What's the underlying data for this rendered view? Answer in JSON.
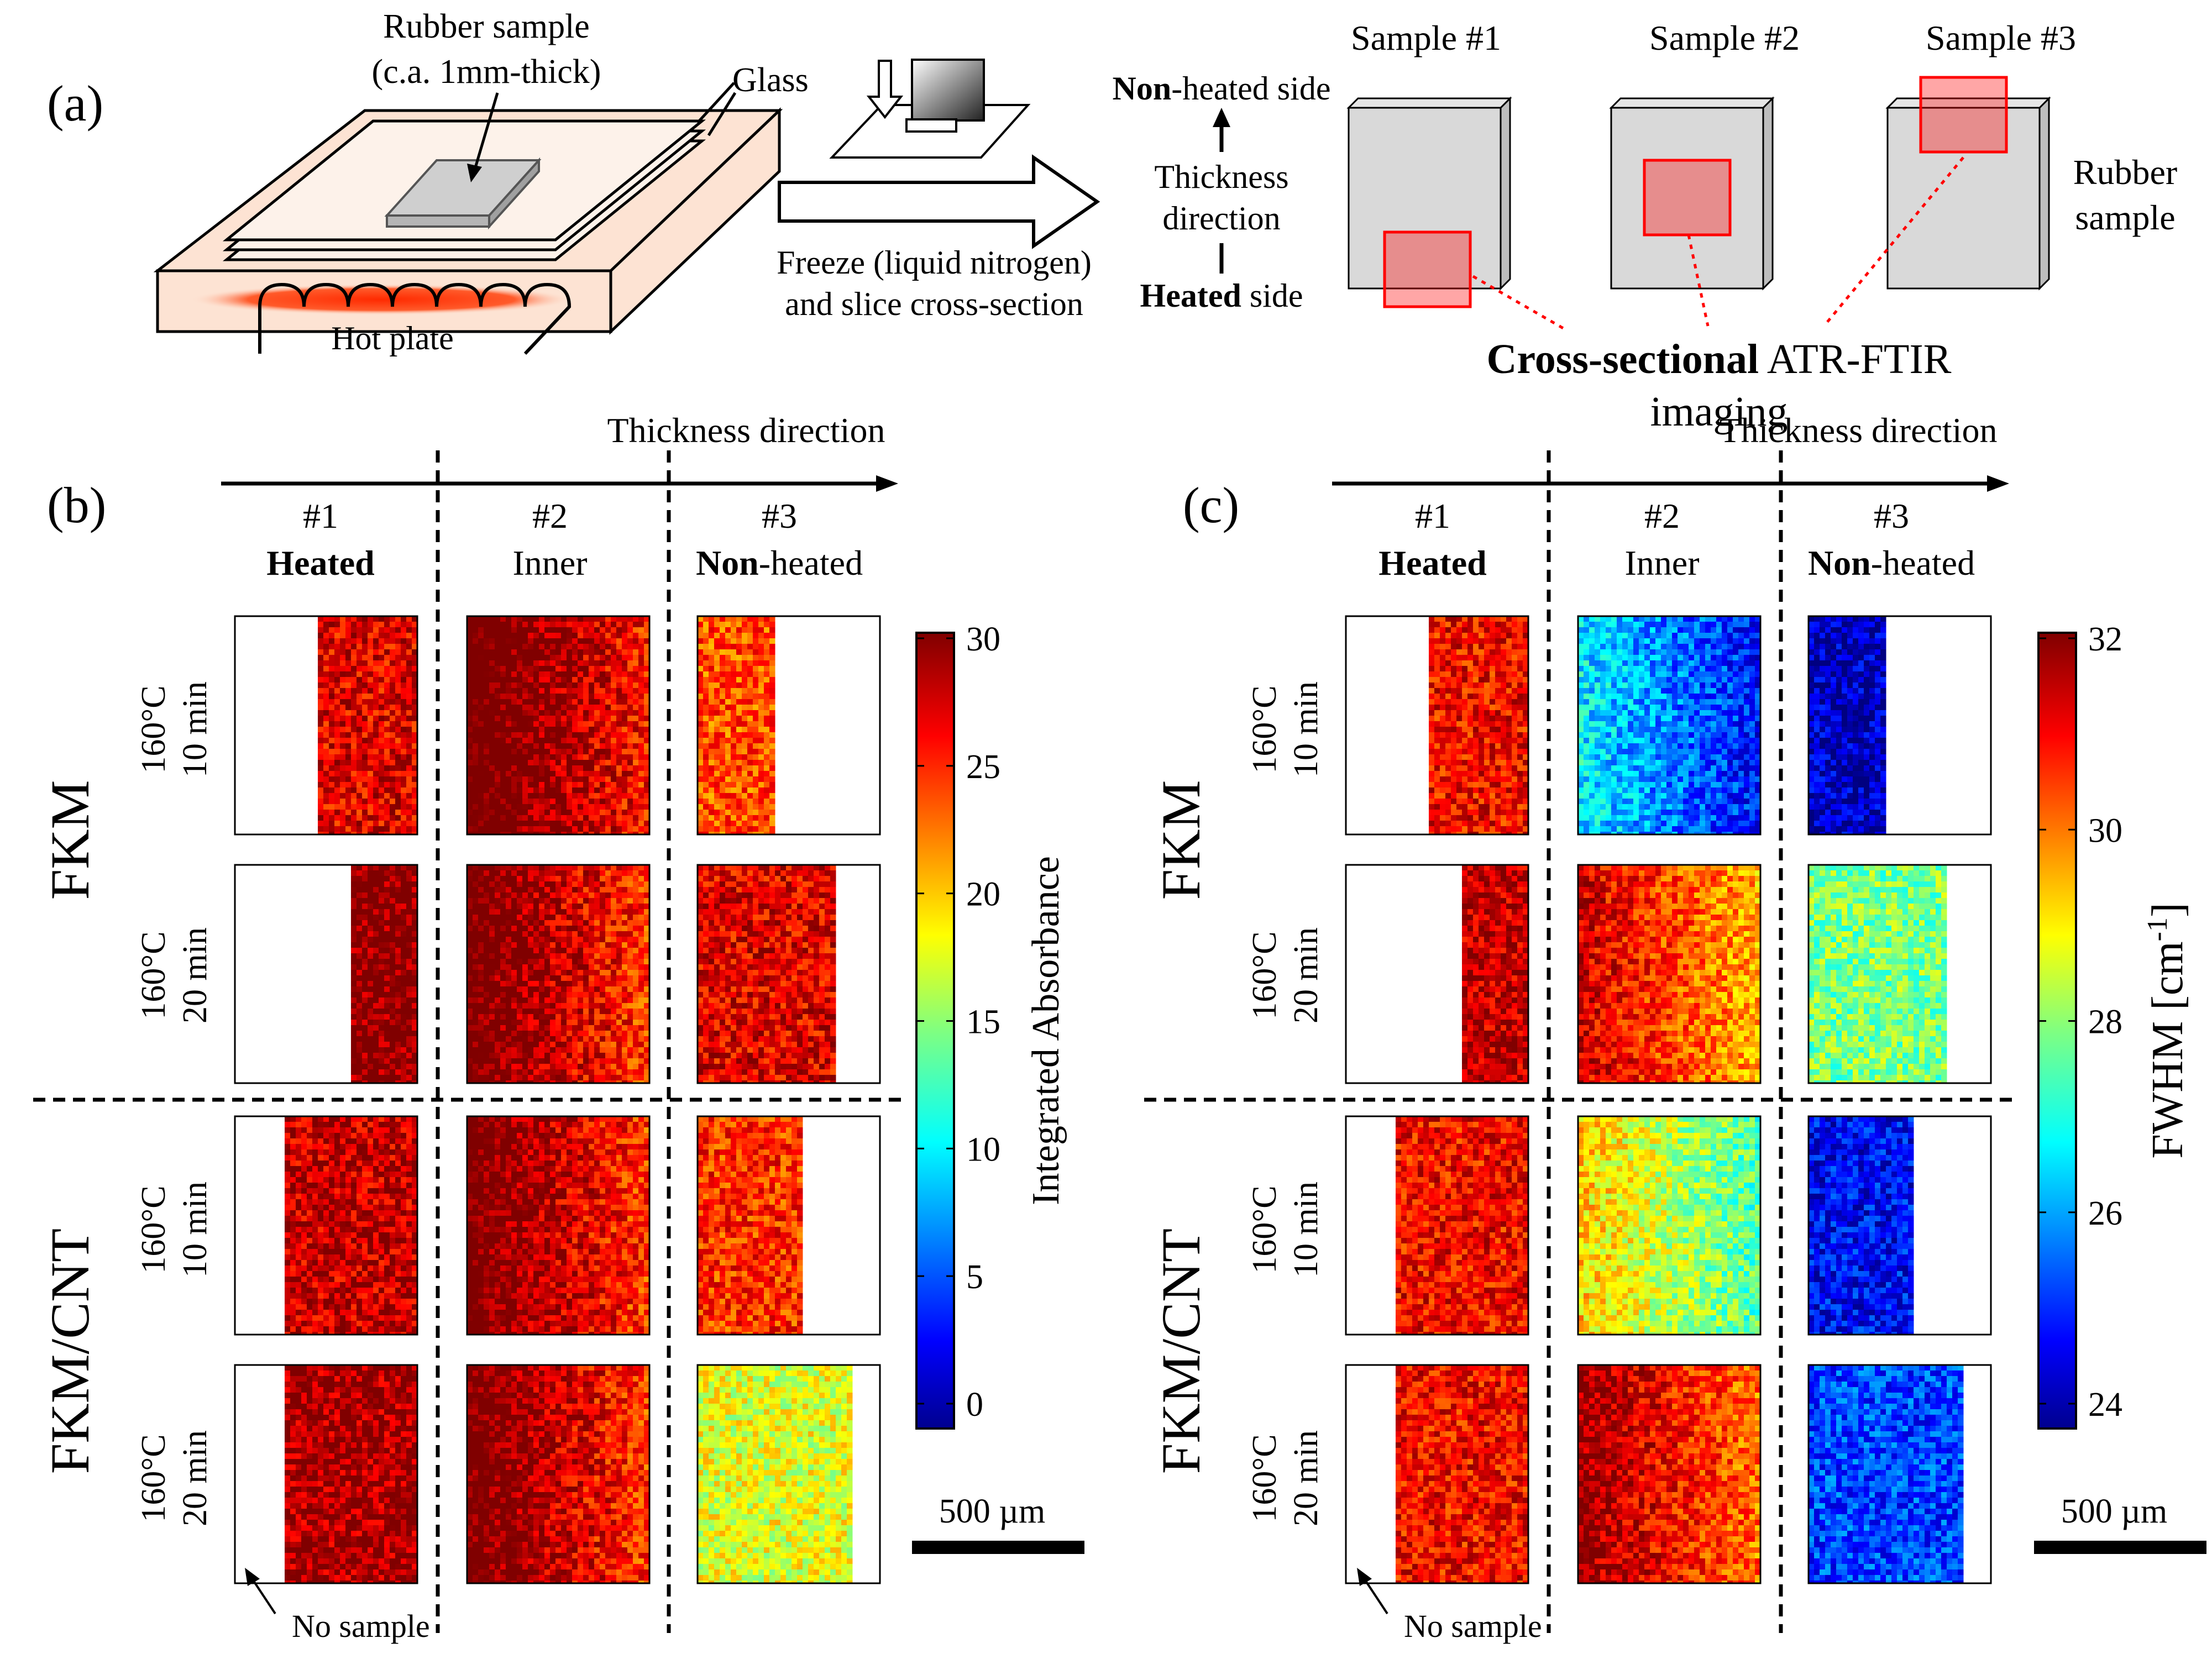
{
  "panel_a": {
    "label": "(a)",
    "rubber_sample_label": "Rubber sample",
    "thickness_note": "(c.a. 1mm-thick)",
    "glass_label": "Glass",
    "hot_plate_label": "Hot plate",
    "freeze_line1": "Freeze (liquid nitrogen)",
    "freeze_line2": "and slice cross-section",
    "non_heated_bold": "Non",
    "non_heated_rest": "-heated side",
    "thickness_line1": "Thickness",
    "thickness_line2": "direction",
    "heated_bold": "Heated",
    "heated_rest": " side",
    "sample_labels": [
      "Sample #1",
      "Sample #2",
      "Sample #3"
    ],
    "rubber_line1": "Rubber",
    "rubber_line2": "sample",
    "cross_bold": "Cross-sectional",
    "cross_rest": " ATR-FTIR",
    "imaging": "imaging"
  },
  "panel_b": {
    "label": "(b)",
    "direction": "Thickness direction",
    "columns": [
      {
        "num": "#1",
        "bold": "Heated",
        "rest": ""
      },
      {
        "num": "#2",
        "bold": "",
        "rest": "Inner"
      },
      {
        "num": "#3",
        "bold": "Non",
        "rest": "-heated"
      }
    ],
    "colorbar_label": "Integrated Absorbance",
    "colorbar_ticks": [
      "30",
      "25",
      "20",
      "15",
      "10",
      "5",
      "0"
    ],
    "scale_bar": "500 µm",
    "no_sample": "No sample"
  },
  "panel_c": {
    "label": "(c)",
    "direction": "Thickness direction",
    "columns": [
      {
        "num": "#1",
        "bold": "Heated",
        "rest": ""
      },
      {
        "num": "#2",
        "bold": "",
        "rest": "Inner"
      },
      {
        "num": "#3",
        "bold": "Non",
        "rest": "-heated"
      }
    ],
    "colorbar_label": "FWHM [cm",
    "colorbar_label_sup": "-1",
    "colorbar_label_end": "]",
    "colorbar_ticks": [
      "32",
      "30",
      "28",
      "26",
      "24"
    ],
    "scale_bar": "500 µm",
    "no_sample": "No sample"
  },
  "rows": [
    {
      "material": "FKM",
      "temp": "160°C",
      "time": "10 min"
    },
    {
      "material": "FKM",
      "temp": "160°C",
      "time": "20 min"
    },
    {
      "material": "FKM/CNT",
      "temp": "160°C",
      "time": "10 min"
    },
    {
      "material": "FKM/CNT",
      "temp": "160°C",
      "time": "20 min"
    }
  ],
  "materials": [
    "FKM",
    "FKM/CNT"
  ],
  "colors": {
    "red_box": "#ff0000",
    "sample_gray": "#d9d9d9",
    "hot_plate": "#fde3d3",
    "heater_glow": "#ff4a1c"
  },
  "chart_data": [
    {
      "type": "heatmap",
      "title": "",
      "colorbar_label": "Integrated Absorbance",
      "zlim": [
        0,
        30
      ],
      "colormap": "jet",
      "columns": [
        "#1 Heated",
        "#2 Inner",
        "#3 Non-heated"
      ],
      "rows": [
        "FKM 160°C 10 min",
        "FKM 160°C 20 min",
        "FKM/CNT 160°C 10 min",
        "FKM/CNT 160°C 20 min"
      ],
      "approx_mean_values": [
        [
          27,
          29,
          24
        ],
        [
          30,
          28,
          27
        ],
        [
          28,
          28,
          25
        ],
        [
          29,
          28,
          18
        ]
      ],
      "sample_coverage": [
        [
          0.55,
          1.0,
          0.42
        ],
        [
          0.37,
          1.0,
          0.76
        ],
        [
          0.73,
          1.0,
          0.57
        ],
        [
          0.73,
          1.0,
          0.86
        ]
      ]
    },
    {
      "type": "heatmap",
      "title": "",
      "colorbar_label": "FWHM [cm-1]",
      "zlim": [
        24,
        32
      ],
      "colormap": "jet",
      "columns": [
        "#1 Heated",
        "#2 Inner",
        "#3 Non-heated"
      ],
      "rows": [
        "FKM 160°C 10 min",
        "FKM 160°C 20 min",
        "FKM/CNT 160°C 10 min",
        "FKM/CNT 160°C 20 min"
      ],
      "approx_mean_values": [
        [
          31,
          26,
          24.5
        ],
        [
          31.5,
          30.5,
          28
        ],
        [
          31,
          28.5,
          25
        ],
        [
          31,
          31,
          25.5
        ]
      ],
      "sample_coverage": [
        [
          0.55,
          1.0,
          0.42
        ],
        [
          0.37,
          1.0,
          0.76
        ],
        [
          0.73,
          1.0,
          0.57
        ],
        [
          0.73,
          1.0,
          0.86
        ]
      ]
    }
  ]
}
